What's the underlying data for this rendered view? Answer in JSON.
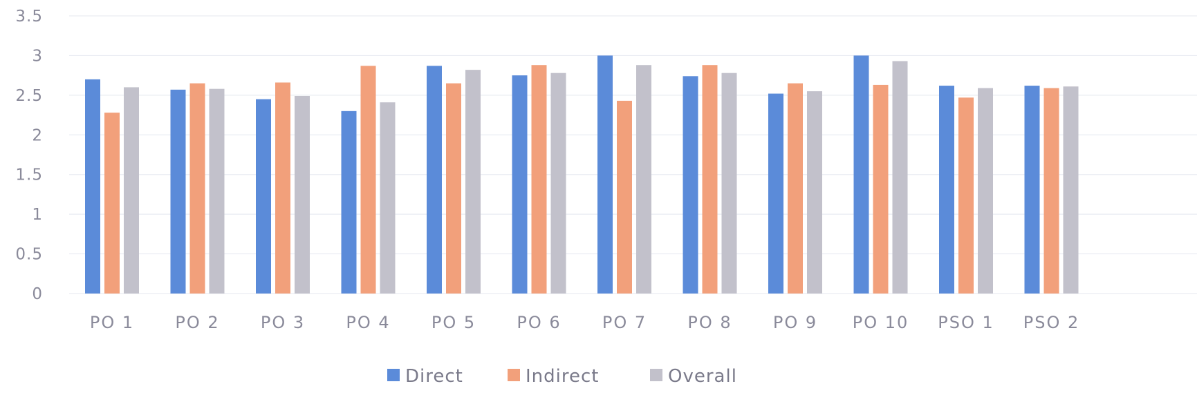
{
  "chart_data": {
    "type": "bar",
    "title": "",
    "xlabel": "",
    "ylabel": "",
    "ylim": [
      0,
      3.5
    ],
    "yticks": [
      "0",
      "0.5",
      "1",
      "1.5",
      "2",
      "2.5",
      "3",
      "3.5"
    ],
    "grid": true,
    "legend_position": "bottom",
    "categories": [
      "PO 1",
      "PO 2",
      "PO 3",
      "PO 4",
      "PO 5",
      "PO 6",
      "PO 7",
      "PO 8",
      "PO 9",
      "PO 10",
      "PSO 1",
      "PSO 2"
    ],
    "series": [
      {
        "name": "Direct",
        "color": "#5b8bd9",
        "values": [
          2.7,
          2.57,
          2.45,
          2.3,
          2.87,
          2.75,
          3.0,
          2.74,
          2.52,
          3.0,
          2.62,
          2.62
        ]
      },
      {
        "name": "Indirect",
        "color": "#f2a07b",
        "values": [
          2.28,
          2.65,
          2.66,
          2.87,
          2.65,
          2.88,
          2.43,
          2.88,
          2.65,
          2.63,
          2.47,
          2.59
        ]
      },
      {
        "name": "Overall",
        "color": "#c2c1cb",
        "values": [
          2.6,
          2.58,
          2.49,
          2.41,
          2.82,
          2.78,
          2.88,
          2.78,
          2.55,
          2.93,
          2.59,
          2.61
        ]
      }
    ]
  }
}
